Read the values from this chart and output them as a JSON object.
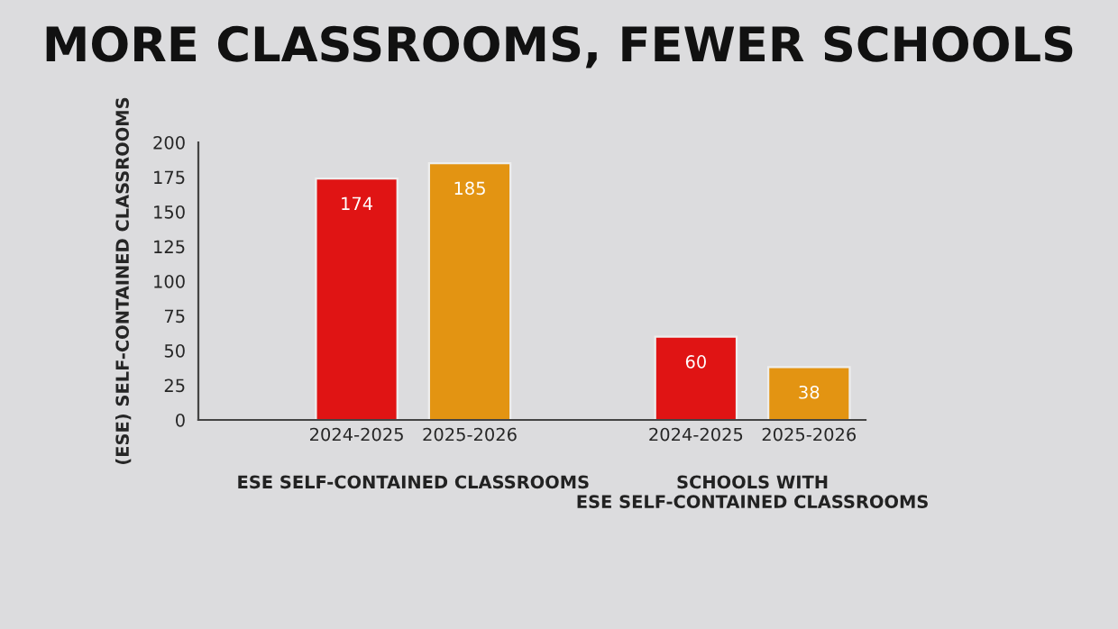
{
  "chart_data": {
    "type": "bar",
    "title": "MORE CLASSROOMS, FEWER SCHOOLS",
    "ylabel": "(ESE) SELF-CONTAINED CLASSROOMS",
    "categories": [
      "2024-2025",
      "2025-2026",
      null,
      "2024-2025",
      "2025-2026"
    ],
    "values": [
      174,
      185,
      null,
      60,
      38
    ],
    "colors": [
      "#e01414",
      "#e39412",
      null,
      "#e01414",
      "#e39412"
    ],
    "ylim": [
      0,
      200
    ],
    "yticks": [
      0,
      25,
      50,
      75,
      100,
      125,
      150,
      175,
      200
    ],
    "data_labels": true,
    "grid": false,
    "legend": false,
    "annotations": [
      "ESE SELF-CONTAINED CLASSROOMS",
      "SCHOOLS WITH\nESE SELF-CONTAINED CLASSROOMS"
    ]
  }
}
